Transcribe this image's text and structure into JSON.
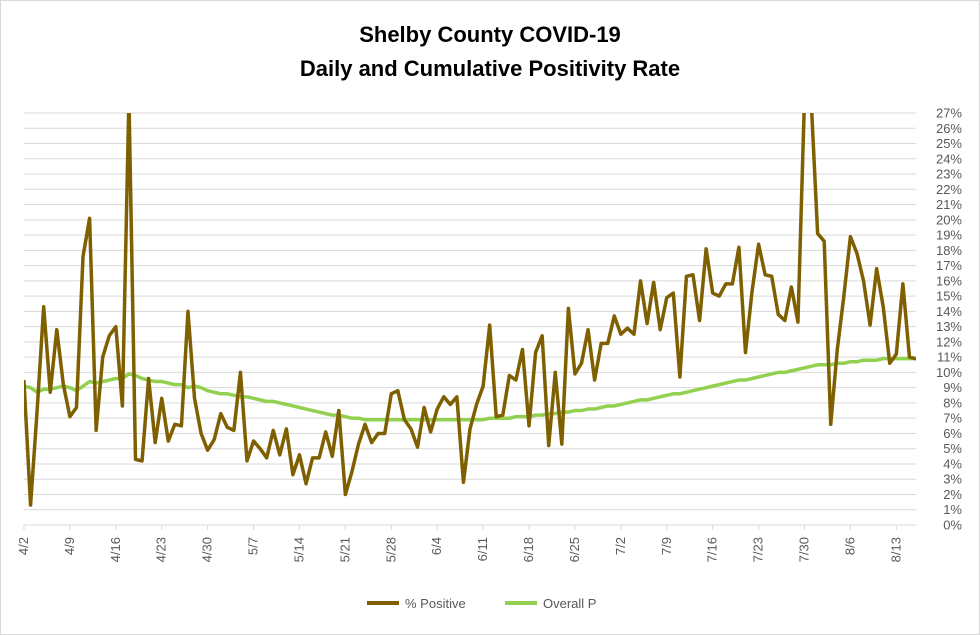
{
  "chart_data": {
    "type": "line",
    "title_line1": "Shelby County COVID-19",
    "title_line2": "Daily and Cumulative Positivity Rate",
    "xlabel": "",
    "ylabel": "",
    "ylim": [
      0,
      27
    ],
    "y_ticks": [
      "0%",
      "1%",
      "2%",
      "3%",
      "4%",
      "5%",
      "6%",
      "7%",
      "8%",
      "9%",
      "10%",
      "11%",
      "12%",
      "13%",
      "14%",
      "15%",
      "16%",
      "17%",
      "18%",
      "19%",
      "20%",
      "21%",
      "22%",
      "23%",
      "24%",
      "25%",
      "26%",
      "27%"
    ],
    "x_ticks": [
      "4/2",
      "4/9",
      "4/16",
      "4/23",
      "4/30",
      "5/7",
      "5/14",
      "5/21",
      "5/28",
      "6/4",
      "6/11",
      "6/18",
      "6/25",
      "7/2",
      "7/9",
      "7/16",
      "7/23",
      "7/30",
      "8/6",
      "8/13"
    ],
    "grid": true,
    "legend_position": "bottom",
    "series": [
      {
        "name": "% Positive",
        "color": "#7f6000",
        "values": [
          9.4,
          1.3,
          7.5,
          14.3,
          8.7,
          12.8,
          9.2,
          7.1,
          7.7,
          17.6,
          20.1,
          6.2,
          11.0,
          12.4,
          13.0,
          7.8,
          28.0,
          4.3,
          4.2,
          9.6,
          5.4,
          8.3,
          5.5,
          6.6,
          6.5,
          14.0,
          8.3,
          6.0,
          4.9,
          5.6,
          7.3,
          6.4,
          6.2,
          10.0,
          4.2,
          5.5,
          5.0,
          4.4,
          6.2,
          4.6,
          6.3,
          3.3,
          4.6,
          2.7,
          4.4,
          4.4,
          6.1,
          4.5,
          7.5,
          2.0,
          3.5,
          5.3,
          6.6,
          5.4,
          6.0,
          6.0,
          8.6,
          8.8,
          6.9,
          6.3,
          5.1,
          7.7,
          6.1,
          7.6,
          8.4,
          7.9,
          8.4,
          2.8,
          6.3,
          7.9,
          9.1,
          13.1,
          7.1,
          7.2,
          9.8,
          9.5,
          11.5,
          6.5,
          11.3,
          12.4,
          5.2,
          10.0,
          5.3,
          14.2,
          9.9,
          10.6,
          12.8,
          9.5,
          11.9,
          11.9,
          13.7,
          12.5,
          12.9,
          12.5,
          16.0,
          13.2,
          15.9,
          12.8,
          14.9,
          15.2,
          9.7,
          16.3,
          16.4,
          13.4,
          18.1,
          15.2,
          15.0,
          15.8,
          15.8,
          18.2,
          11.3,
          15.3,
          18.4,
          16.4,
          16.3,
          13.8,
          13.4,
          15.6,
          13.3,
          28.0,
          28.0,
          19.1,
          18.6,
          6.6,
          11.5,
          15.0,
          18.9,
          17.8,
          16.0,
          13.1,
          16.8,
          14.3,
          10.6,
          11.2,
          15.8,
          11.0,
          10.9
        ],
        "marker": "none"
      },
      {
        "name": "Overall P",
        "color": "#92d050",
        "values": [
          9.1,
          9.0,
          8.7,
          8.9,
          8.9,
          9.0,
          9.1,
          9.0,
          8.8,
          9.1,
          9.4,
          9.3,
          9.4,
          9.5,
          9.6,
          9.6,
          9.9,
          9.8,
          9.6,
          9.5,
          9.4,
          9.4,
          9.3,
          9.2,
          9.2,
          9.0,
          9.1,
          9.0,
          8.8,
          8.7,
          8.6,
          8.6,
          8.5,
          8.4,
          8.4,
          8.3,
          8.2,
          8.1,
          8.1,
          8.0,
          7.9,
          7.8,
          7.7,
          7.6,
          7.5,
          7.4,
          7.3,
          7.2,
          7.2,
          7.1,
          7.0,
          7.0,
          6.9,
          6.9,
          6.9,
          6.9,
          6.9,
          6.9,
          6.9,
          6.9,
          6.9,
          6.9,
          6.9,
          6.9,
          6.9,
          6.9,
          6.9,
          6.9,
          6.9,
          6.9,
          6.9,
          7.0,
          7.0,
          7.0,
          7.0,
          7.1,
          7.1,
          7.1,
          7.2,
          7.2,
          7.3,
          7.3,
          7.4,
          7.4,
          7.5,
          7.5,
          7.6,
          7.6,
          7.7,
          7.8,
          7.8,
          7.9,
          8.0,
          8.1,
          8.2,
          8.2,
          8.3,
          8.4,
          8.5,
          8.6,
          8.6,
          8.7,
          8.8,
          8.9,
          9.0,
          9.1,
          9.2,
          9.3,
          9.4,
          9.5,
          9.5,
          9.6,
          9.7,
          9.8,
          9.9,
          10.0,
          10.0,
          10.1,
          10.2,
          10.3,
          10.4,
          10.5,
          10.5,
          10.5,
          10.6,
          10.6,
          10.7,
          10.7,
          10.8,
          10.8,
          10.8,
          10.9,
          10.9,
          10.9,
          10.9,
          10.9,
          10.9
        ]
      }
    ]
  }
}
